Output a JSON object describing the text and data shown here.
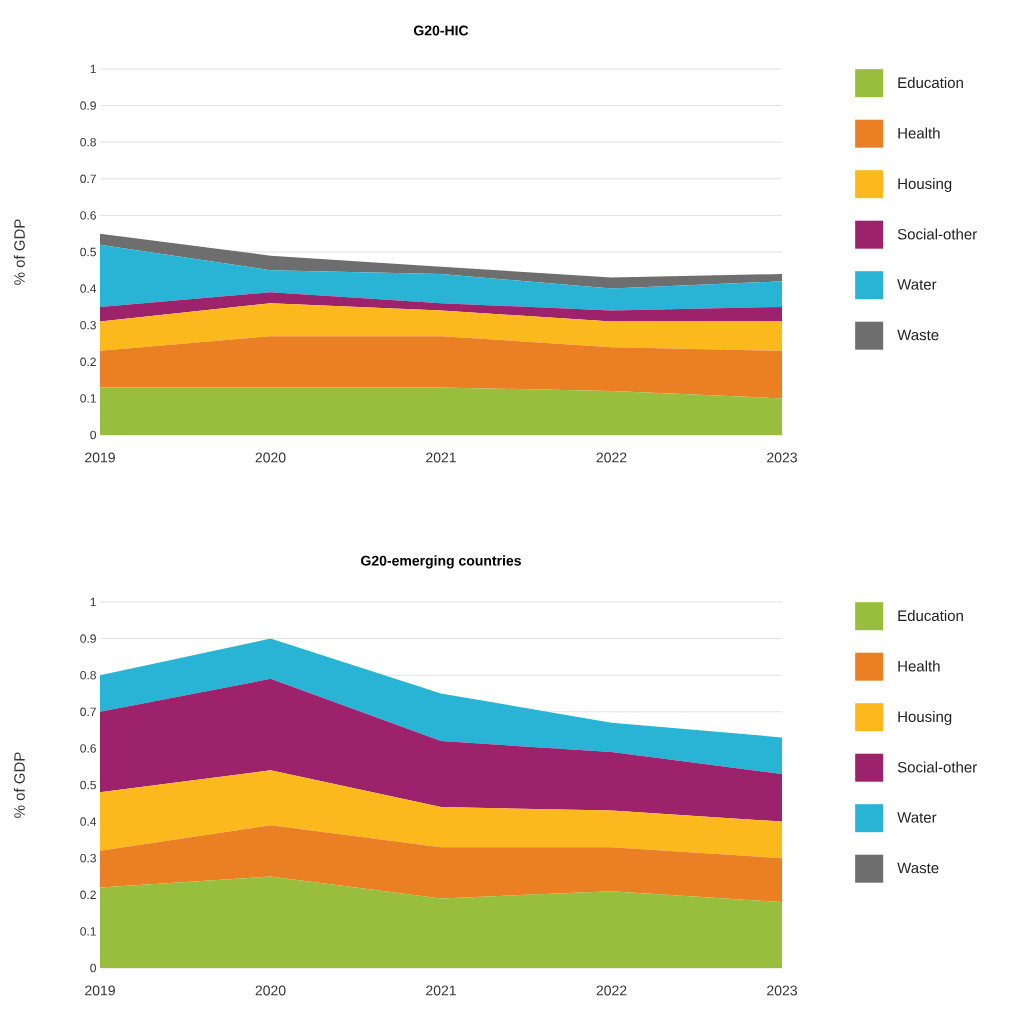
{
  "chart_data": [
    {
      "type": "area",
      "stacked": true,
      "title": "G20-HIC",
      "ylabel": "% of GDP",
      "x": [
        2019,
        2020,
        2021,
        2022,
        2023
      ],
      "xlim": [
        2019,
        2023
      ],
      "xticks": [
        2019,
        2020,
        2021,
        2022,
        2023
      ],
      "ylim": [
        0,
        1
      ],
      "yticks": [
        0,
        0.1,
        0.2,
        0.3,
        0.4,
        0.5,
        0.6,
        0.7,
        0.8,
        0.9,
        1
      ],
      "grid": "y",
      "legend": "right",
      "series": [
        {
          "name": "Education",
          "color": "#99bd3c",
          "values": [
            0.13,
            0.13,
            0.13,
            0.12,
            0.1
          ]
        },
        {
          "name": "Health",
          "color": "#ea7f24",
          "values": [
            0.1,
            0.14,
            0.14,
            0.12,
            0.13
          ]
        },
        {
          "name": "Housing",
          "color": "#fbb91e",
          "values": [
            0.08,
            0.09,
            0.07,
            0.07,
            0.08
          ]
        },
        {
          "name": "Social-other",
          "color": "#9b226b",
          "values": [
            0.04,
            0.03,
            0.02,
            0.03,
            0.04
          ]
        },
        {
          "name": "Water",
          "color": "#29b4d5",
          "values": [
            0.17,
            0.06,
            0.08,
            0.06,
            0.07
          ]
        },
        {
          "name": "Waste",
          "color": "#6e6e6e",
          "values": [
            0.03,
            0.04,
            0.02,
            0.03,
            0.02
          ]
        }
      ]
    },
    {
      "type": "area",
      "stacked": true,
      "title": "G20-emerging countries",
      "ylabel": "% of GDP",
      "x": [
        2019,
        2020,
        2021,
        2022,
        2023
      ],
      "xlim": [
        2019,
        2023
      ],
      "xticks": [
        2019,
        2020,
        2021,
        2022,
        2023
      ],
      "ylim": [
        0,
        1
      ],
      "yticks": [
        0,
        0.1,
        0.2,
        0.3,
        0.4,
        0.5,
        0.6,
        0.7,
        0.8,
        0.9,
        1
      ],
      "grid": "y",
      "legend": "right",
      "series": [
        {
          "name": "Education",
          "color": "#99bd3c",
          "values": [
            0.22,
            0.25,
            0.19,
            0.21,
            0.18
          ]
        },
        {
          "name": "Health",
          "color": "#ea7f24",
          "values": [
            0.1,
            0.14,
            0.14,
            0.12,
            0.12
          ]
        },
        {
          "name": "Housing",
          "color": "#fbb91e",
          "values": [
            0.16,
            0.15,
            0.11,
            0.1,
            0.1
          ]
        },
        {
          "name": "Social-other",
          "color": "#9b226b",
          "values": [
            0.22,
            0.25,
            0.18,
            0.16,
            0.13
          ]
        },
        {
          "name": "Water",
          "color": "#29b4d5",
          "values": [
            0.1,
            0.11,
            0.13,
            0.08,
            0.1
          ]
        },
        {
          "name": "Waste",
          "color": "#6e6e6e",
          "values": [
            null,
            null,
            null,
            null,
            null
          ]
        }
      ]
    }
  ]
}
